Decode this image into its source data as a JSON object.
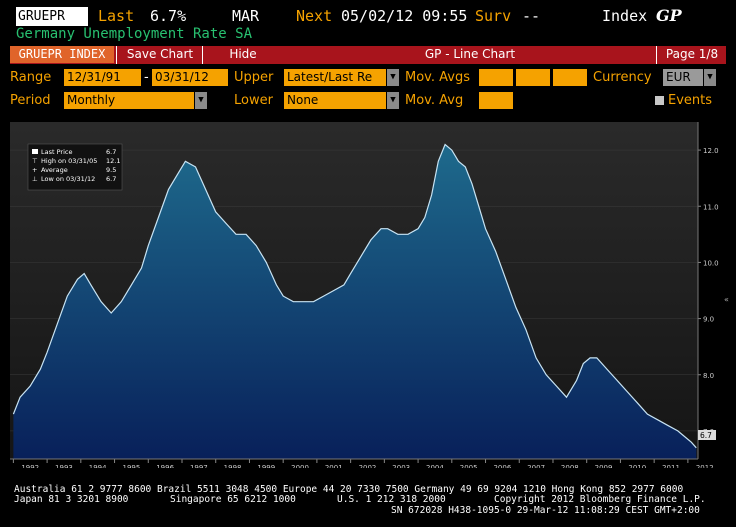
{
  "header": {
    "ticker": "GRUEPR",
    "last_label": "Last",
    "last_value": "6.7%",
    "period": "MAR",
    "next_label": "Next",
    "next_date": "05/02/12 09:55",
    "surv_label": "Surv",
    "surv_value": "--",
    "index_label": "Index",
    "gp_label": "GP",
    "subtitle": "Germany Unemployment Rate SA"
  },
  "toolbar": {
    "security": "GRUEPR INDEX",
    "save_chart": "Save Chart",
    "hide": "Hide",
    "title": "GP - Line Chart",
    "page": "Page 1/8"
  },
  "controls": {
    "range_label": "Range",
    "range_start": "12/31/91",
    "range_sep": "-",
    "range_end": "03/31/12",
    "upper_label": "Upper",
    "upper_value": "Latest/Last Re",
    "mov_avgs_label": "Mov. Avgs",
    "currency_label": "Currency",
    "currency_value": "EUR",
    "period_label": "Period",
    "period_value": "Monthly",
    "lower_label": "Lower",
    "lower_value": "None",
    "mov_avg_label": "Mov. Avg",
    "events_label": "Events"
  },
  "legend": {
    "last_price": "Last Price",
    "last_price_val": "6.7",
    "high": "High on 03/31/05",
    "high_val": "12.1",
    "average": "Average",
    "average_val": "9.5",
    "low": "Low on 03/31/12",
    "low_val": "6.7"
  },
  "chart_data": {
    "type": "area",
    "x": [
      1992.0,
      1992.2,
      1992.5,
      1992.8,
      1993.0,
      1993.3,
      1993.6,
      1993.9,
      1994.1,
      1994.3,
      1994.6,
      1994.9,
      1995.2,
      1995.5,
      1995.8,
      1996.0,
      1996.3,
      1996.6,
      1996.9,
      1997.1,
      1997.4,
      1997.7,
      1998.0,
      1998.3,
      1998.6,
      1998.9,
      1999.2,
      1999.5,
      1999.8,
      2000.0,
      2000.3,
      2000.6,
      2000.9,
      2001.2,
      2001.5,
      2001.8,
      2002.0,
      2002.3,
      2002.6,
      2002.9,
      2003.1,
      2003.4,
      2003.7,
      2004.0,
      2004.2,
      2004.4,
      2004.6,
      2004.8,
      2005.0,
      2005.2,
      2005.4,
      2005.6,
      2005.8,
      2006.0,
      2006.3,
      2006.6,
      2006.9,
      2007.2,
      2007.5,
      2007.8,
      2008.1,
      2008.4,
      2008.7,
      2008.9,
      2009.1,
      2009.3,
      2009.6,
      2009.9,
      2010.2,
      2010.5,
      2010.8,
      2011.1,
      2011.4,
      2011.7,
      2011.9,
      2012.1,
      2012.25
    ],
    "y": [
      7.3,
      7.6,
      7.8,
      8.1,
      8.4,
      8.9,
      9.4,
      9.7,
      9.8,
      9.6,
      9.3,
      9.1,
      9.3,
      9.6,
      9.9,
      10.3,
      10.8,
      11.3,
      11.6,
      11.8,
      11.7,
      11.3,
      10.9,
      10.7,
      10.5,
      10.5,
      10.3,
      10.0,
      9.6,
      9.4,
      9.3,
      9.3,
      9.3,
      9.4,
      9.5,
      9.6,
      9.8,
      10.1,
      10.4,
      10.6,
      10.6,
      10.5,
      10.5,
      10.6,
      10.8,
      11.2,
      11.8,
      12.1,
      12.0,
      11.8,
      11.7,
      11.4,
      11.0,
      10.6,
      10.2,
      9.7,
      9.2,
      8.8,
      8.3,
      8.0,
      7.8,
      7.6,
      7.9,
      8.2,
      8.3,
      8.3,
      8.1,
      7.9,
      7.7,
      7.5,
      7.3,
      7.2,
      7.1,
      7.0,
      6.9,
      6.8,
      6.7
    ],
    "xlim": [
      1991.9,
      2012.3
    ],
    "ylim": [
      6.5,
      12.5
    ],
    "y_ticks": [
      "7.0",
      "8.0",
      "9.0",
      "10.0",
      "11.0",
      "12.0"
    ],
    "x_ticks": [
      "1992",
      "1993",
      "1994",
      "1995",
      "1996",
      "1997",
      "1998",
      "1999",
      "2000",
      "2001",
      "2002",
      "2003",
      "2004",
      "2005",
      "2006",
      "2007",
      "2008",
      "2009",
      "2010",
      "2011",
      "2012"
    ],
    "last_marker": "6.7",
    "line_color": "#c8e4f4",
    "fill_top": "#1e6a8c",
    "fill_bottom": "#08205a"
  },
  "footer": {
    "line1": "Australia 61 2 9777 8600 Brazil 5511 3048 4500 Europe 44 20 7330 7500 Germany 49 69 9204 1210 Hong Kong 852 2977 6000",
    "line2a": "Japan 81 3 3201 8900",
    "line2b": "Singapore 65 6212 1000",
    "line2c": "U.S. 1 212 318 2000",
    "line2d": "Copyright 2012 Bloomberg Finance L.P.",
    "line3": "SN 672028 H438-1095-0 29-Mar-12 11:08:29 CEST GMT+2:00"
  }
}
